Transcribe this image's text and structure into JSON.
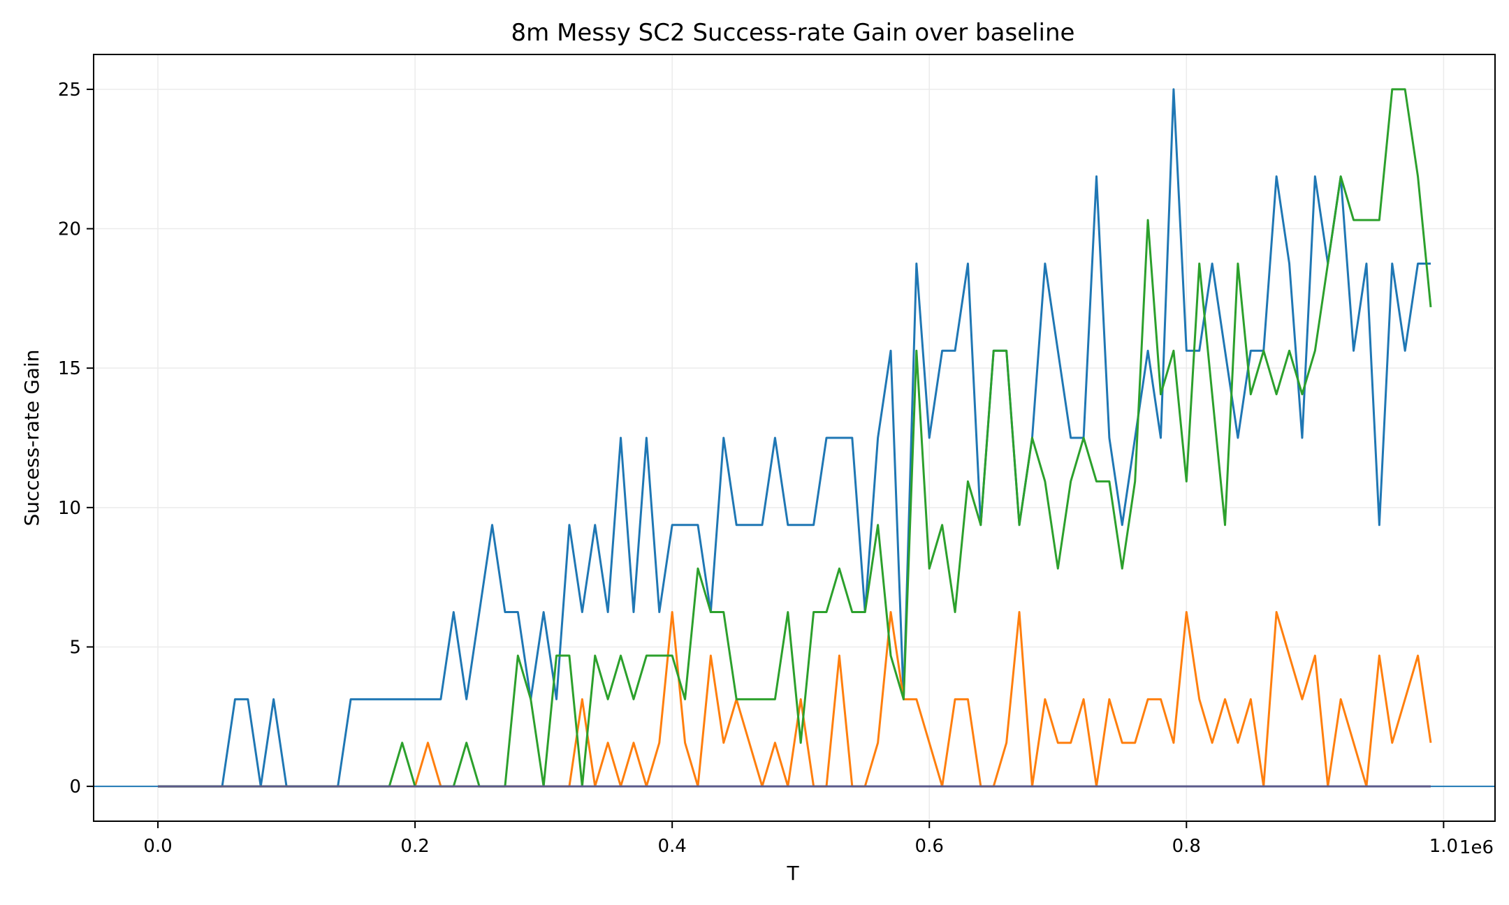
{
  "chart_data": {
    "type": "line",
    "title": "8m Messy SC2 Success-rate Gain over baseline",
    "xlabel": "T",
    "ylabel": "Success-rate Gain",
    "x_offset_label": "1e6",
    "xlim": [
      -0.05,
      1.04
    ],
    "ylim": [
      -1.25,
      26.25
    ],
    "xticks": [
      0.0,
      0.2,
      0.4,
      0.6,
      0.8,
      1.0
    ],
    "xtick_labels": [
      "0.0",
      "0.2",
      "0.4",
      "0.6",
      "0.8",
      "1.0"
    ],
    "yticks": [
      0,
      5,
      10,
      15,
      20,
      25
    ],
    "ytick_labels": [
      "0",
      "5",
      "10",
      "15",
      "20",
      "25"
    ],
    "grid": true,
    "legend": false,
    "reference_line": {
      "y": 0,
      "color": "#1f77b4"
    },
    "x": [
      0.0,
      0.01,
      0.02,
      0.03,
      0.04,
      0.05,
      0.06,
      0.07,
      0.08,
      0.09,
      0.1,
      0.11,
      0.12,
      0.13,
      0.14,
      0.15,
      0.16,
      0.17,
      0.18,
      0.19,
      0.2,
      0.21,
      0.22,
      0.23,
      0.24,
      0.25,
      0.26,
      0.27,
      0.28,
      0.29,
      0.3,
      0.31,
      0.32,
      0.33,
      0.34,
      0.35,
      0.36,
      0.37,
      0.38,
      0.39,
      0.4,
      0.41,
      0.42,
      0.43,
      0.44,
      0.45,
      0.46,
      0.47,
      0.48,
      0.49,
      0.5,
      0.51,
      0.52,
      0.53,
      0.54,
      0.55,
      0.56,
      0.57,
      0.58,
      0.59,
      0.6,
      0.61,
      0.62,
      0.63,
      0.64,
      0.65,
      0.66,
      0.67,
      0.68,
      0.69,
      0.7,
      0.71,
      0.72,
      0.73,
      0.74,
      0.75,
      0.76,
      0.77,
      0.78,
      0.79,
      0.8,
      0.81,
      0.82,
      0.83,
      0.84,
      0.85,
      0.86,
      0.87,
      0.88,
      0.89,
      0.9,
      0.91,
      0.92,
      0.93,
      0.94,
      0.95,
      0.96,
      0.97,
      0.98,
      0.99
    ],
    "series": [
      {
        "color": "#1f77b4",
        "values": [
          0,
          0,
          0,
          0,
          0,
          0,
          3.125,
          3.125,
          0,
          3.125,
          0,
          0,
          0,
          0,
          0,
          3.125,
          3.125,
          3.125,
          3.125,
          3.125,
          3.125,
          3.125,
          3.125,
          6.25,
          3.125,
          6.25,
          9.375,
          6.25,
          6.25,
          3.125,
          6.25,
          3.125,
          9.375,
          6.25,
          9.375,
          6.25,
          12.5,
          6.25,
          12.5,
          6.25,
          9.375,
          9.375,
          9.375,
          6.25,
          12.5,
          9.375,
          9.375,
          9.375,
          12.5,
          9.375,
          9.375,
          9.375,
          12.5,
          12.5,
          12.5,
          6.25,
          12.5,
          15.625,
          3.125,
          18.75,
          12.5,
          15.625,
          15.625,
          18.75,
          9.375,
          15.625,
          15.625,
          9.375,
          12.5,
          18.75,
          15.625,
          12.5,
          12.5,
          21.875,
          12.5,
          9.375,
          12.5,
          15.625,
          12.5,
          25,
          15.625,
          15.625,
          18.75,
          15.625,
          12.5,
          15.625,
          15.625,
          21.875,
          18.75,
          12.5,
          21.875,
          18.75,
          21.875,
          15.625,
          18.75,
          9.375,
          18.75,
          15.625,
          18.75,
          18.75
        ]
      },
      {
        "color": "#ff7f0e",
        "values": [
          0,
          0,
          0,
          0,
          0,
          0,
          0,
          0,
          0,
          0,
          0,
          0,
          0,
          0,
          0,
          0,
          0,
          0,
          0,
          0,
          0,
          1.5625,
          0,
          0,
          0,
          0,
          0,
          0,
          0,
          0,
          0,
          0,
          0,
          3.125,
          0,
          1.5625,
          0,
          1.5625,
          0,
          1.5625,
          6.25,
          1.5625,
          0,
          4.6875,
          1.5625,
          3.125,
          1.5625,
          0,
          1.5625,
          0,
          3.125,
          0,
          0,
          4.6875,
          0,
          0,
          1.5625,
          6.25,
          3.125,
          3.125,
          1.5625,
          0,
          3.125,
          3.125,
          0,
          0,
          1.5625,
          6.25,
          0,
          3.125,
          1.5625,
          1.5625,
          3.125,
          0,
          3.125,
          1.5625,
          1.5625,
          3.125,
          3.125,
          1.5625,
          6.25,
          3.125,
          1.5625,
          3.125,
          1.5625,
          3.125,
          0,
          6.25,
          4.6875,
          3.125,
          4.6875,
          0,
          3.125,
          1.5625,
          0,
          4.6875,
          1.5625,
          3.125,
          4.6875,
          1.5625
        ]
      },
      {
        "color": "#2ca02c",
        "values": [
          0,
          0,
          0,
          0,
          0,
          0,
          0,
          0,
          0,
          0,
          0,
          0,
          0,
          0,
          0,
          0,
          0,
          0,
          0,
          1.5625,
          0,
          0,
          0,
          0,
          1.5625,
          0,
          0,
          0,
          4.6875,
          3.125,
          0,
          4.6875,
          4.6875,
          0,
          4.6875,
          3.125,
          4.6875,
          3.125,
          4.6875,
          4.6875,
          4.6875,
          3.125,
          7.8125,
          6.25,
          6.25,
          3.125,
          3.125,
          3.125,
          3.125,
          6.25,
          1.5625,
          6.25,
          6.25,
          7.8125,
          6.25,
          6.25,
          9.375,
          4.6875,
          3.125,
          15.625,
          7.8125,
          9.375,
          6.25,
          10.9375,
          9.375,
          15.625,
          15.625,
          9.375,
          12.5,
          10.9375,
          7.8125,
          10.9375,
          12.5,
          10.9375,
          10.9375,
          7.8125,
          10.9375,
          20.3125,
          14.0625,
          15.625,
          10.9375,
          18.75,
          14.0625,
          9.375,
          18.75,
          14.0625,
          15.625,
          14.0625,
          15.625,
          14.0625,
          15.625,
          18.75,
          21.875,
          20.3125,
          20.3125,
          20.3125,
          25,
          25,
          21.875,
          17.1875
        ]
      },
      {
        "color": "#5a5a8a",
        "values": [
          0,
          0,
          0,
          0,
          0,
          0,
          0,
          0,
          0,
          0,
          0,
          0,
          0,
          0,
          0,
          0,
          0,
          0,
          0,
          0,
          0,
          0,
          0,
          0,
          0,
          0,
          0,
          0,
          0,
          0,
          0,
          0,
          0,
          0,
          0,
          0,
          0,
          0,
          0,
          0,
          0,
          0,
          0,
          0,
          0,
          0,
          0,
          0,
          0,
          0,
          0,
          0,
          0,
          0,
          0,
          0,
          0,
          0,
          0,
          0,
          0,
          0,
          0,
          0,
          0,
          0,
          0,
          0,
          0,
          0,
          0,
          0,
          0,
          0,
          0,
          0,
          0,
          0,
          0,
          0,
          0,
          0,
          0,
          0,
          0,
          0,
          0,
          0,
          0,
          0,
          0,
          0,
          0,
          0,
          0,
          0,
          0,
          0,
          0,
          0
        ]
      }
    ]
  }
}
